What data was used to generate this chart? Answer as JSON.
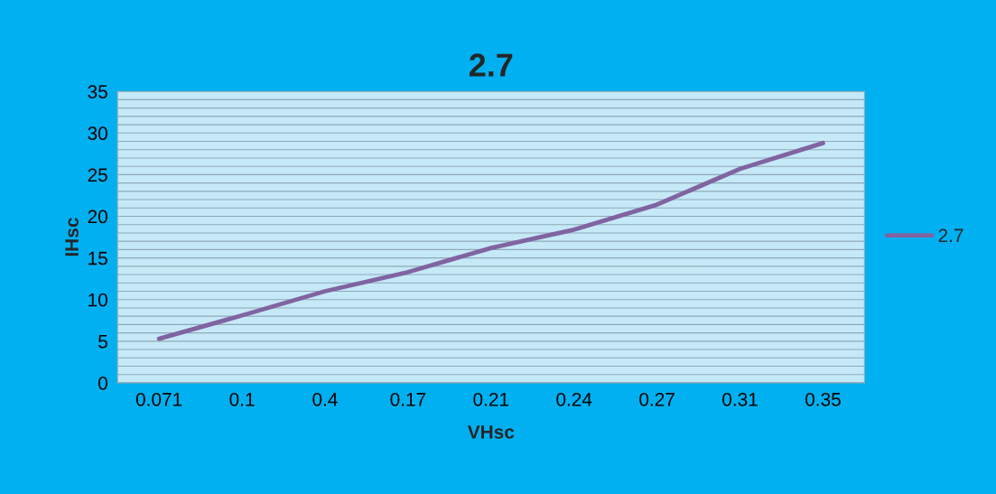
{
  "chart_data": {
    "type": "line",
    "title": "2.7",
    "xlabel": "VHsc",
    "ylabel": "IHsc",
    "categories": [
      "0.071",
      "0.1",
      "0.4",
      "0.17",
      "0.21",
      "0.24",
      "0.27",
      "0.31",
      "0.35"
    ],
    "series": [
      {
        "name": "2.7",
        "color": "#8064a2",
        "values": [
          5.3,
          8.1,
          11.0,
          13.3,
          16.2,
          18.4,
          21.4,
          25.7,
          28.8
        ]
      }
    ],
    "ylim": [
      0,
      35
    ],
    "yticks": [
      0,
      5,
      10,
      15,
      20,
      25,
      30,
      35
    ],
    "grid": "y",
    "legend": "right",
    "marker": "none",
    "line_style": "solid"
  }
}
